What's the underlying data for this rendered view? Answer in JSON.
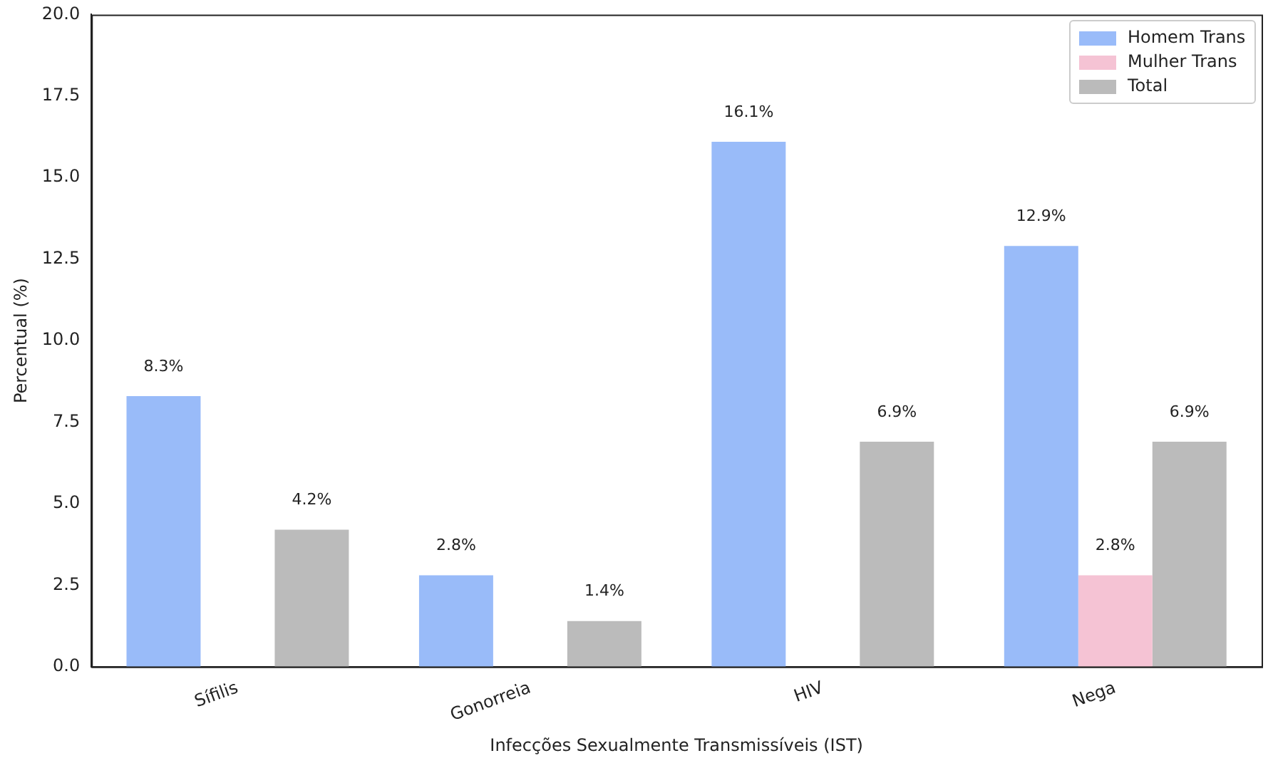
{
  "chart_data": {
    "type": "bar",
    "xlabel": "Infecções Sexualmente Transmissíveis (IST)",
    "ylabel": "Percentual (%)",
    "categories": [
      "Sífilis",
      "Gonorreia",
      "HIV",
      "Nega"
    ],
    "series": [
      {
        "name": "Homem Trans",
        "color": "#99bbf9",
        "values": [
          8.3,
          2.8,
          16.1,
          12.9
        ],
        "value_labels": [
          "8.3%",
          "2.8%",
          "16.1%",
          "12.9%"
        ]
      },
      {
        "name": "Mulher Trans",
        "color": "#f5c3d4",
        "values": [
          0,
          0,
          0,
          2.8
        ],
        "value_labels": [
          null,
          null,
          null,
          "2.8%"
        ]
      },
      {
        "name": "Total",
        "color": "#bbbbbb",
        "values": [
          4.2,
          1.4,
          6.9,
          6.9
        ],
        "value_labels": [
          "4.2%",
          "1.4%",
          "6.9%",
          "6.9%"
        ]
      }
    ],
    "ylim": [
      0,
      20
    ],
    "yticks": [
      {
        "value": 0,
        "label": "0.0"
      },
      2.5,
      {
        "value": 5,
        "label": "5.0"
      },
      7.5,
      {
        "value": 10,
        "label": "10.0"
      },
      12.5,
      {
        "value": 15,
        "label": "15.0"
      },
      17.5,
      {
        "value": 20,
        "label": "20.0"
      }
    ],
    "grid": false,
    "legend": "top right"
  }
}
